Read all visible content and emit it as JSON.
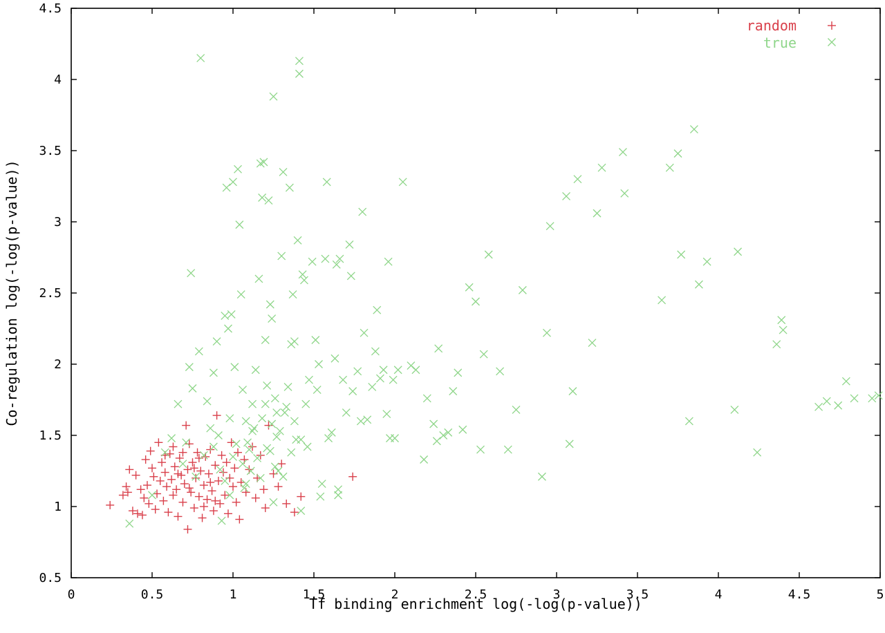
{
  "chart_data": {
    "type": "scatter",
    "title": "",
    "xlabel": "Tf binding enrichment log(-log(p-value))",
    "ylabel": "Co-regulation log(-log(p-value))",
    "xlim": [
      0,
      5
    ],
    "ylim": [
      0.5,
      4.5
    ],
    "x_ticks": [
      "0",
      "0.5",
      "1",
      "1.5",
      "2",
      "2.5",
      "3",
      "3.5",
      "4",
      "4.5",
      "5"
    ],
    "y_ticks": [
      "0.5",
      "1",
      "1.5",
      "2",
      "2.5",
      "3",
      "3.5",
      "4",
      "4.5"
    ],
    "grid": false,
    "legend_position": "top-right",
    "series": [
      {
        "name": "random",
        "marker": "plus",
        "color": "#d9404b",
        "points": [
          [
            0.24,
            1.01
          ],
          [
            0.32,
            1.08
          ],
          [
            0.34,
            1.14
          ],
          [
            0.35,
            1.1
          ],
          [
            0.36,
            1.26
          ],
          [
            0.38,
            0.97
          ],
          [
            0.4,
            1.22
          ],
          [
            0.41,
            0.95
          ],
          [
            0.43,
            1.12
          ],
          [
            0.44,
            0.94
          ],
          [
            0.45,
            1.06
          ],
          [
            0.46,
            1.33
          ],
          [
            0.47,
            1.15
          ],
          [
            0.48,
            1.02
          ],
          [
            0.49,
            1.39
          ],
          [
            0.5,
            1.27
          ],
          [
            0.51,
            1.21
          ],
          [
            0.52,
            0.98
          ],
          [
            0.53,
            1.09
          ],
          [
            0.54,
            1.45
          ],
          [
            0.55,
            1.18
          ],
          [
            0.56,
            1.31
          ],
          [
            0.57,
            1.04
          ],
          [
            0.58,
            1.24
          ],
          [
            0.59,
            1.14
          ],
          [
            0.6,
            0.96
          ],
          [
            0.61,
            1.37
          ],
          [
            0.62,
            1.19
          ],
          [
            0.63,
            1.08
          ],
          [
            0.64,
            1.28
          ],
          [
            0.65,
            1.12
          ],
          [
            0.66,
            0.93
          ],
          [
            0.67,
            1.34
          ],
          [
            0.68,
            1.22
          ],
          [
            0.69,
            1.03
          ],
          [
            0.7,
            1.16
          ],
          [
            0.71,
            1.57
          ],
          [
            0.72,
            1.26
          ],
          [
            0.72,
            0.84
          ],
          [
            0.73,
            1.44
          ],
          [
            0.74,
            1.1
          ],
          [
            0.75,
            1.31
          ],
          [
            0.76,
            0.99
          ],
          [
            0.77,
            1.2
          ],
          [
            0.78,
            1.38
          ],
          [
            0.79,
            1.07
          ],
          [
            0.8,
            1.25
          ],
          [
            0.81,
            0.92
          ],
          [
            0.82,
            1.15
          ],
          [
            0.83,
            1.35
          ],
          [
            0.84,
            1.05
          ],
          [
            0.85,
            1.23
          ],
          [
            0.86,
            1.4
          ],
          [
            0.87,
            1.11
          ],
          [
            0.88,
            0.97
          ],
          [
            0.89,
            1.29
          ],
          [
            0.9,
            1.64
          ],
          [
            0.91,
            1.18
          ],
          [
            0.92,
            1.02
          ],
          [
            0.93,
            1.36
          ],
          [
            0.94,
            1.24
          ],
          [
            0.95,
            1.08
          ],
          [
            0.96,
            1.31
          ],
          [
            0.97,
            0.95
          ],
          [
            0.98,
            1.2
          ],
          [
            0.99,
            1.45
          ],
          [
            1.0,
            1.14
          ],
          [
            1.01,
            1.27
          ],
          [
            1.02,
            1.03
          ],
          [
            1.03,
            1.38
          ],
          [
            1.04,
            0.91
          ],
          [
            1.05,
            1.17
          ],
          [
            1.07,
            1.33
          ],
          [
            1.08,
            1.1
          ],
          [
            1.1,
            1.26
          ],
          [
            1.12,
            1.42
          ],
          [
            1.14,
            1.06
          ],
          [
            1.15,
            1.2
          ],
          [
            1.17,
            1.36
          ],
          [
            1.19,
            1.12
          ],
          [
            1.2,
            0.99
          ],
          [
            1.22,
            1.57
          ],
          [
            1.25,
            1.23
          ],
          [
            1.28,
            1.14
          ],
          [
            1.3,
            1.3
          ],
          [
            1.33,
            1.02
          ],
          [
            1.38,
            0.96
          ],
          [
            1.42,
            1.07
          ],
          [
            1.74,
            1.21
          ],
          [
            0.58,
            1.36
          ],
          [
            0.63,
            1.42
          ],
          [
            0.66,
            1.23
          ],
          [
            0.69,
            1.38
          ],
          [
            0.73,
            1.13
          ],
          [
            0.76,
            1.27
          ],
          [
            0.79,
            1.34
          ],
          [
            0.82,
            1.0
          ],
          [
            0.86,
            1.17
          ],
          [
            0.89,
            1.04
          ]
        ]
      },
      {
        "name": "true",
        "marker": "cross",
        "color": "#8fd68a",
        "points": [
          [
            0.36,
            0.88
          ],
          [
            0.5,
            1.08
          ],
          [
            0.58,
            1.38
          ],
          [
            0.62,
            1.48
          ],
          [
            0.66,
            1.72
          ],
          [
            0.69,
            1.3
          ],
          [
            0.71,
            1.45
          ],
          [
            0.73,
            1.98
          ],
          [
            0.74,
            2.64
          ],
          [
            0.75,
            1.83
          ],
          [
            0.77,
            1.21
          ],
          [
            0.79,
            2.09
          ],
          [
            0.8,
            4.15
          ],
          [
            0.82,
            1.36
          ],
          [
            0.84,
            1.74
          ],
          [
            0.86,
            1.55
          ],
          [
            0.88,
            1.94
          ],
          [
            0.9,
            2.16
          ],
          [
            0.91,
            1.5
          ],
          [
            0.93,
            0.9
          ],
          [
            0.95,
            2.34
          ],
          [
            0.96,
            3.24
          ],
          [
            0.97,
            2.25
          ],
          [
            0.98,
            1.62
          ],
          [
            0.99,
            2.35
          ],
          [
            1.0,
            3.28
          ],
          [
            1.01,
            1.98
          ],
          [
            1.02,
            1.44
          ],
          [
            1.03,
            3.37
          ],
          [
            1.04,
            2.98
          ],
          [
            1.05,
            2.49
          ],
          [
            1.06,
            1.82
          ],
          [
            1.07,
            1.13
          ],
          [
            1.08,
            1.6
          ],
          [
            1.1,
            1.4
          ],
          [
            1.12,
            1.72
          ],
          [
            1.14,
            1.96
          ],
          [
            1.16,
            2.6
          ],
          [
            1.17,
            3.41
          ],
          [
            1.18,
            3.17
          ],
          [
            1.19,
            3.42
          ],
          [
            1.2,
            2.17
          ],
          [
            1.21,
            1.85
          ],
          [
            1.22,
            3.15
          ],
          [
            1.23,
            2.42
          ],
          [
            1.24,
            2.32
          ],
          [
            1.25,
            3.88
          ],
          [
            1.26,
            1.76
          ],
          [
            1.27,
            1.49
          ],
          [
            1.28,
            1.25
          ],
          [
            1.3,
            2.76
          ],
          [
            1.31,
            3.35
          ],
          [
            1.32,
            1.66
          ],
          [
            1.34,
            1.84
          ],
          [
            1.35,
            3.24
          ],
          [
            1.36,
            2.14
          ],
          [
            1.37,
            2.49
          ],
          [
            1.38,
            2.16
          ],
          [
            1.39,
            1.47
          ],
          [
            1.4,
            2.87
          ],
          [
            1.41,
            4.13
          ],
          [
            1.41,
            4.04
          ],
          [
            1.42,
            0.97
          ],
          [
            1.43,
            2.63
          ],
          [
            1.44,
            2.59
          ],
          [
            1.45,
            1.72
          ],
          [
            1.47,
            1.89
          ],
          [
            1.49,
            2.72
          ],
          [
            1.51,
            2.17
          ],
          [
            1.52,
            1.82
          ],
          [
            1.53,
            2.0
          ],
          [
            1.55,
            1.16
          ],
          [
            1.57,
            2.74
          ],
          [
            1.58,
            3.28
          ],
          [
            1.59,
            1.48
          ],
          [
            1.61,
            1.52
          ],
          [
            1.63,
            2.04
          ],
          [
            1.64,
            2.7
          ],
          [
            1.65,
            1.08
          ],
          [
            1.66,
            2.74
          ],
          [
            1.68,
            1.89
          ],
          [
            1.7,
            1.66
          ],
          [
            1.72,
            2.84
          ],
          [
            1.73,
            2.62
          ],
          [
            1.74,
            1.81
          ],
          [
            1.77,
            1.95
          ],
          [
            1.79,
            1.6
          ],
          [
            1.8,
            3.07
          ],
          [
            1.81,
            2.22
          ],
          [
            1.83,
            1.61
          ],
          [
            1.86,
            1.84
          ],
          [
            1.88,
            2.09
          ],
          [
            1.89,
            2.38
          ],
          [
            1.91,
            1.9
          ],
          [
            1.93,
            1.96
          ],
          [
            1.95,
            1.65
          ],
          [
            1.96,
            2.72
          ],
          [
            1.97,
            1.48
          ],
          [
            1.99,
            1.89
          ],
          [
            2.0,
            1.48
          ],
          [
            2.02,
            1.96
          ],
          [
            2.05,
            3.28
          ],
          [
            2.1,
            1.99
          ],
          [
            2.13,
            1.96
          ],
          [
            2.18,
            1.33
          ],
          [
            2.2,
            1.76
          ],
          [
            2.24,
            1.58
          ],
          [
            2.26,
            1.46
          ],
          [
            2.27,
            2.11
          ],
          [
            2.3,
            1.5
          ],
          [
            2.33,
            1.52
          ],
          [
            2.36,
            1.81
          ],
          [
            2.39,
            1.94
          ],
          [
            2.42,
            1.54
          ],
          [
            2.46,
            2.54
          ],
          [
            2.5,
            2.44
          ],
          [
            2.53,
            1.4
          ],
          [
            2.55,
            2.07
          ],
          [
            2.58,
            2.77
          ],
          [
            2.65,
            1.95
          ],
          [
            2.7,
            1.4
          ],
          [
            2.75,
            1.68
          ],
          [
            2.79,
            2.52
          ],
          [
            2.91,
            1.21
          ],
          [
            2.94,
            2.22
          ],
          [
            2.96,
            2.97
          ],
          [
            3.06,
            3.18
          ],
          [
            3.08,
            1.44
          ],
          [
            3.1,
            1.81
          ],
          [
            3.13,
            3.3
          ],
          [
            3.22,
            2.15
          ],
          [
            3.25,
            3.06
          ],
          [
            3.28,
            3.38
          ],
          [
            3.41,
            3.49
          ],
          [
            3.42,
            3.2
          ],
          [
            3.65,
            2.45
          ],
          [
            3.7,
            3.38
          ],
          [
            3.75,
            3.48
          ],
          [
            3.77,
            2.77
          ],
          [
            3.82,
            1.6
          ],
          [
            3.85,
            3.65
          ],
          [
            3.88,
            2.56
          ],
          [
            3.93,
            2.72
          ],
          [
            4.1,
            1.68
          ],
          [
            4.12,
            2.79
          ],
          [
            4.24,
            1.38
          ],
          [
            4.36,
            2.14
          ],
          [
            4.39,
            2.31
          ],
          [
            4.4,
            2.24
          ],
          [
            4.62,
            1.7
          ],
          [
            4.67,
            1.74
          ],
          [
            4.74,
            1.71
          ],
          [
            4.79,
            1.88
          ],
          [
            4.84,
            1.76
          ],
          [
            4.95,
            1.76
          ],
          [
            4.99,
            1.78
          ],
          [
            1.06,
            1.3
          ],
          [
            1.09,
            1.45
          ],
          [
            1.11,
            1.25
          ],
          [
            1.13,
            1.55
          ],
          [
            1.15,
            1.34
          ],
          [
            1.18,
            1.62
          ],
          [
            1.21,
            1.41
          ],
          [
            1.24,
            1.58
          ],
          [
            1.26,
            1.28
          ],
          [
            1.29,
            1.53
          ],
          [
            1.33,
            1.7
          ],
          [
            1.36,
            1.38
          ],
          [
            1.38,
            1.6
          ],
          [
            1.42,
            1.47
          ],
          [
            1.46,
            1.42
          ],
          [
            1.54,
            1.07
          ],
          [
            1.65,
            1.12
          ],
          [
            1.25,
            1.03
          ],
          [
            1.17,
            1.2
          ],
          [
            0.95,
            1.18
          ],
          [
            0.98,
            1.08
          ],
          [
            1.0,
            1.35
          ],
          [
            0.88,
            1.42
          ],
          [
            0.92,
            1.26
          ],
          [
            1.08,
            1.16
          ],
          [
            1.12,
            1.53
          ],
          [
            1.2,
            1.72
          ],
          [
            1.27,
            1.66
          ],
          [
            1.23,
            1.39
          ],
          [
            1.31,
            1.21
          ]
        ]
      }
    ]
  }
}
